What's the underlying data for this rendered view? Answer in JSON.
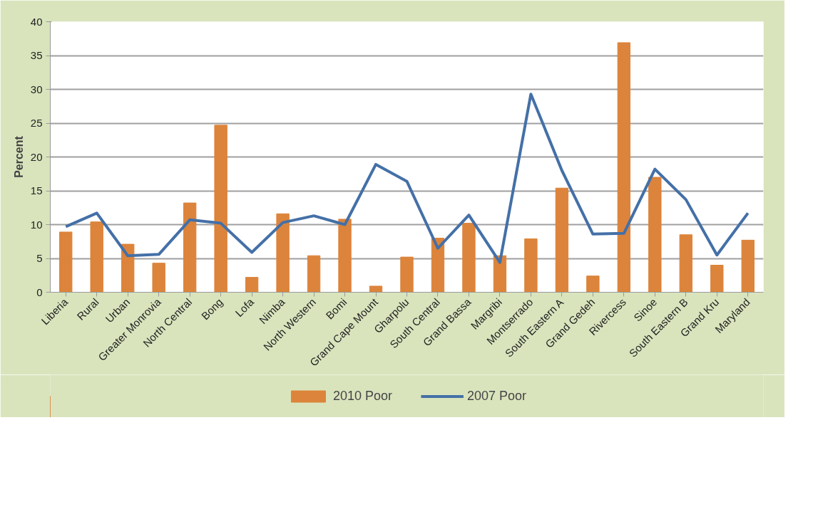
{
  "chart_data": {
    "type": "bar",
    "ylabel": "Percent",
    "categories": [
      "Liberia",
      "Rural",
      "Urban",
      "Greater Monrovia",
      "North Central",
      "Bong",
      "Lofa",
      "Nimba",
      "North Western",
      "Bomi",
      "Grand Cape Mount",
      "Gharpolu",
      "South Central",
      "Grand Bassa",
      "Margribi",
      "Montserrado",
      "South Eastern A",
      "Grand Gedeh",
      "Rivercess",
      "Sinoe",
      "South Eastern B",
      "Grand Kru",
      "Maryland"
    ],
    "series": [
      {
        "name": "2010 Poor",
        "color": "#dc843b",
        "values": [
          8.9,
          10.4,
          7.1,
          4.3,
          13.2,
          24.7,
          2.2,
          11.6,
          5.4,
          10.8,
          0.9,
          5.2,
          8.0,
          10.2,
          5.4,
          7.9,
          15.4,
          2.4,
          36.9,
          17.0,
          8.5,
          4.0,
          7.7
        ]
      },
      {
        "name": "2007 Poor",
        "type": "line",
        "color": "#4470a7",
        "values": [
          9.7,
          11.7,
          5.4,
          5.6,
          10.7,
          10.2,
          5.9,
          10.3,
          11.3,
          10.0,
          18.9,
          16.4,
          6.5,
          11.4,
          4.4,
          29.3,
          18.0,
          8.6,
          8.7,
          18.2,
          13.7,
          5.5,
          11.7
        ]
      }
    ],
    "ylim": [
      0,
      40
    ],
    "yticks": [
      0,
      5,
      10,
      15,
      20,
      25,
      30,
      35,
      40
    ],
    "grid": "y",
    "legend": "bottom"
  }
}
